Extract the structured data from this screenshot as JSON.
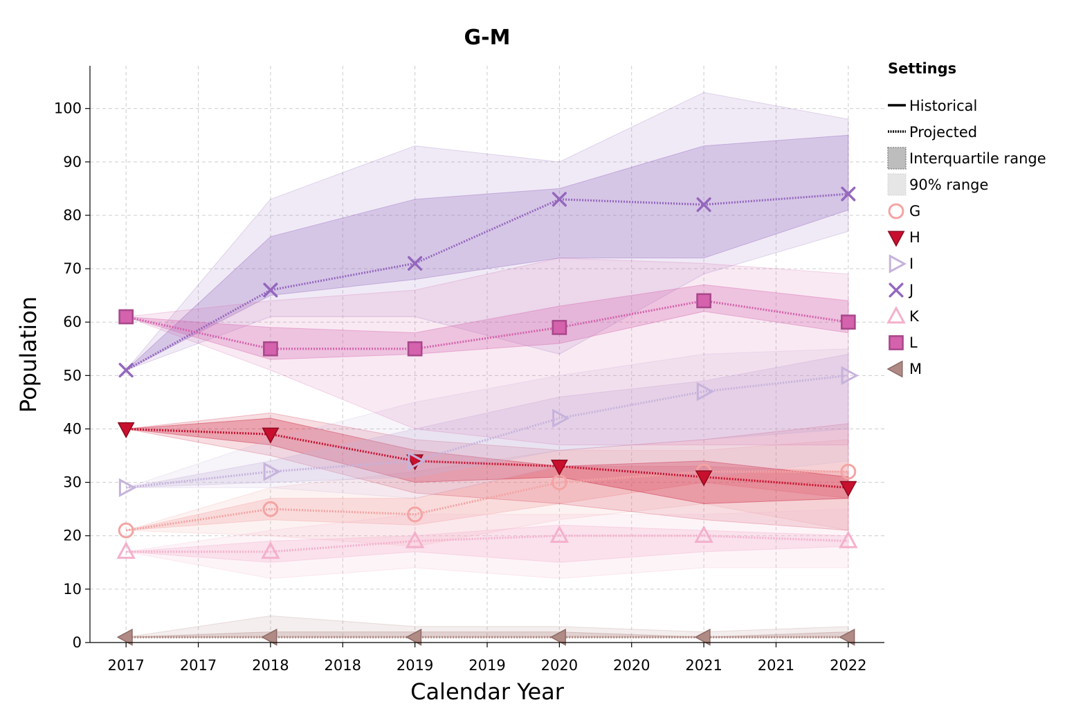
{
  "chart_data": {
    "type": "line",
    "title": "G-M",
    "xlabel": "Calendar Year",
    "ylabel": "Population",
    "x": [
      2017,
      2018,
      2019,
      2020,
      2021,
      2022
    ],
    "x_tick_labels": [
      "2017",
      "2017",
      "2018",
      "2018",
      "2019",
      "2019",
      "2020",
      "2020",
      "2021",
      "2021",
      "2022"
    ],
    "y_ticks": [
      0,
      10,
      20,
      30,
      40,
      50,
      60,
      70,
      80,
      90,
      100
    ],
    "xlim": [
      2016.75,
      2022.25
    ],
    "ylim": [
      0,
      108
    ],
    "grid": true,
    "legend_placement": "right",
    "legend": {
      "title": "Settings",
      "historical_label": "Historical",
      "projected_label": "Projected",
      "iqr_label": "Interquartile range",
      "range90_label": "90% range"
    },
    "series": [
      {
        "name": "G",
        "color": "#f4a3a3",
        "marker": "circle",
        "values": [
          21,
          25,
          24,
          30,
          32,
          32
        ],
        "iqr_low": [
          21,
          23,
          22,
          26,
          30,
          27
        ],
        "iqr_high": [
          21,
          27,
          27,
          33,
          33,
          32
        ],
        "p90_low": [
          21,
          20,
          18,
          23,
          26,
          21
        ],
        "p90_high": [
          21,
          29,
          32,
          36,
          36,
          38
        ]
      },
      {
        "name": "H",
        "color": "#c8102e",
        "marker": "triangle-down",
        "values": [
          40,
          39,
          34,
          33,
          31,
          29
        ],
        "iqr_low": [
          40,
          37,
          30,
          31,
          26,
          27
        ],
        "iqr_high": [
          40,
          42,
          36,
          33,
          34,
          31
        ],
        "p90_low": [
          40,
          35,
          28,
          26,
          23,
          21
        ],
        "p90_high": [
          40,
          43,
          38,
          36,
          38,
          41
        ]
      },
      {
        "name": "I",
        "color": "#c6b3dc",
        "marker": "triangle-right",
        "values": [
          29,
          32,
          34,
          42,
          47,
          50
        ],
        "iqr_low": [
          29,
          30,
          31,
          36,
          38,
          40
        ],
        "iqr_high": [
          29,
          34,
          40,
          46,
          49,
          54
        ],
        "p90_low": [
          29,
          29,
          27,
          33,
          31,
          34
        ],
        "p90_high": [
          29,
          38,
          45,
          50,
          54,
          55
        ]
      },
      {
        "name": "J",
        "color": "#9467bd",
        "marker": "x",
        "values": [
          51,
          66,
          71,
          83,
          82,
          84
        ],
        "iqr_low": [
          51,
          65,
          68,
          72,
          72,
          81
        ],
        "iqr_high": [
          51,
          76,
          83,
          85,
          93,
          95
        ],
        "p90_low": [
          51,
          61,
          61,
          54,
          69,
          77
        ],
        "p90_high": [
          51,
          83,
          93,
          90,
          103,
          98
        ]
      },
      {
        "name": "K",
        "color": "#f4b0cc",
        "marker": "triangle-up",
        "values": [
          17,
          17,
          19,
          20,
          20,
          19
        ],
        "iqr_low": [
          17,
          15,
          17,
          15,
          17,
          18
        ],
        "iqr_high": [
          17,
          19,
          20,
          22,
          21,
          20
        ],
        "p90_low": [
          17,
          12,
          14,
          12,
          14,
          14
        ],
        "p90_high": [
          17,
          21,
          24,
          24,
          24,
          25
        ]
      },
      {
        "name": "L",
        "color": "#d462ad",
        "marker": "square",
        "values": [
          61,
          55,
          55,
          59,
          64,
          60
        ],
        "iqr_low": [
          61,
          53,
          54,
          56,
          62,
          58
        ],
        "iqr_high": [
          61,
          59,
          58,
          63,
          67,
          64
        ],
        "p90_low": [
          61,
          51,
          40,
          37,
          37,
          37
        ],
        "p90_high": [
          61,
          64,
          66,
          72,
          71,
          69
        ]
      },
      {
        "name": "M",
        "color": "#b08a84",
        "marker": "triangle-left",
        "values": [
          1,
          1,
          1,
          1,
          1,
          1
        ],
        "iqr_low": [
          1,
          1,
          1,
          1,
          1,
          1
        ],
        "iqr_high": [
          1,
          2,
          2,
          2,
          1,
          2
        ],
        "p90_low": [
          1,
          1,
          1,
          1,
          1,
          1
        ],
        "p90_high": [
          1,
          5,
          3,
          3,
          2,
          3
        ]
      }
    ]
  }
}
